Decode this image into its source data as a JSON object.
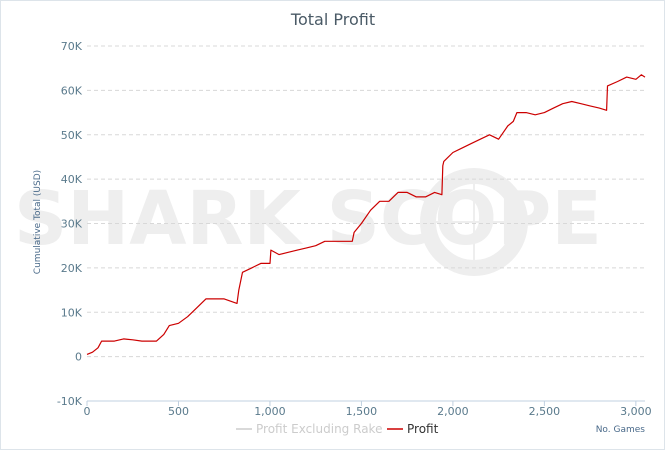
{
  "chart_data": {
    "type": "line",
    "title": "Total Profit",
    "xlabel": "No. Games",
    "ylabel": "Cumulative Total (USD)",
    "xlim": [
      0,
      3050
    ],
    "ylim": [
      -10000,
      70000
    ],
    "x_ticks": [
      0,
      500,
      1000,
      1500,
      2000,
      2500,
      3000
    ],
    "x_tick_labels": [
      "0",
      "500",
      "1,000",
      "1,500",
      "2,000",
      "2,500",
      "3,000"
    ],
    "y_ticks": [
      -10000,
      0,
      10000,
      20000,
      30000,
      40000,
      50000,
      60000,
      70000
    ],
    "y_tick_labels": [
      "-10K",
      "0",
      "10K",
      "20K",
      "30K",
      "40K",
      "50K",
      "60K",
      "70K"
    ],
    "grid": "horizontal-dashed",
    "legend_position": "bottom-center",
    "series": [
      {
        "name": "Profit Excluding Rake",
        "color": "#cccccc",
        "x": [],
        "y": []
      },
      {
        "name": "Profit",
        "color": "#cc0000",
        "x": [
          0,
          30,
          60,
          80,
          100,
          150,
          200,
          250,
          300,
          350,
          380,
          420,
          450,
          500,
          550,
          600,
          650,
          700,
          750,
          820,
          830,
          850,
          900,
          950,
          1000,
          1005,
          1050,
          1100,
          1150,
          1200,
          1250,
          1300,
          1400,
          1450,
          1460,
          1500,
          1550,
          1600,
          1650,
          1700,
          1750,
          1800,
          1850,
          1900,
          1940,
          1945,
          1950,
          2000,
          2050,
          2100,
          2150,
          2200,
          2250,
          2300,
          2330,
          2350,
          2400,
          2450,
          2500,
          2550,
          2600,
          2650,
          2700,
          2750,
          2800,
          2840,
          2845,
          2900,
          2950,
          3000,
          3030,
          3050
        ],
        "y": [
          500,
          1000,
          2000,
          3500,
          3500,
          3500,
          4000,
          3800,
          3500,
          3500,
          3500,
          5000,
          7000,
          7500,
          9000,
          11000,
          13000,
          13000,
          13000,
          12000,
          15000,
          19000,
          20000,
          21000,
          21000,
          24000,
          23000,
          23500,
          24000,
          24500,
          25000,
          26000,
          26000,
          26000,
          28000,
          30000,
          33000,
          35000,
          35000,
          37000,
          37000,
          36000,
          36000,
          37000,
          36500,
          43000,
          44000,
          46000,
          47000,
          48000,
          49000,
          50000,
          49000,
          52000,
          53000,
          55000,
          55000,
          54500,
          55000,
          56000,
          57000,
          57500,
          57000,
          56500,
          56000,
          55500,
          61000,
          62000,
          63000,
          62500,
          63500,
          63000
        ]
      }
    ],
    "watermark": "SHARK SCOPE"
  }
}
